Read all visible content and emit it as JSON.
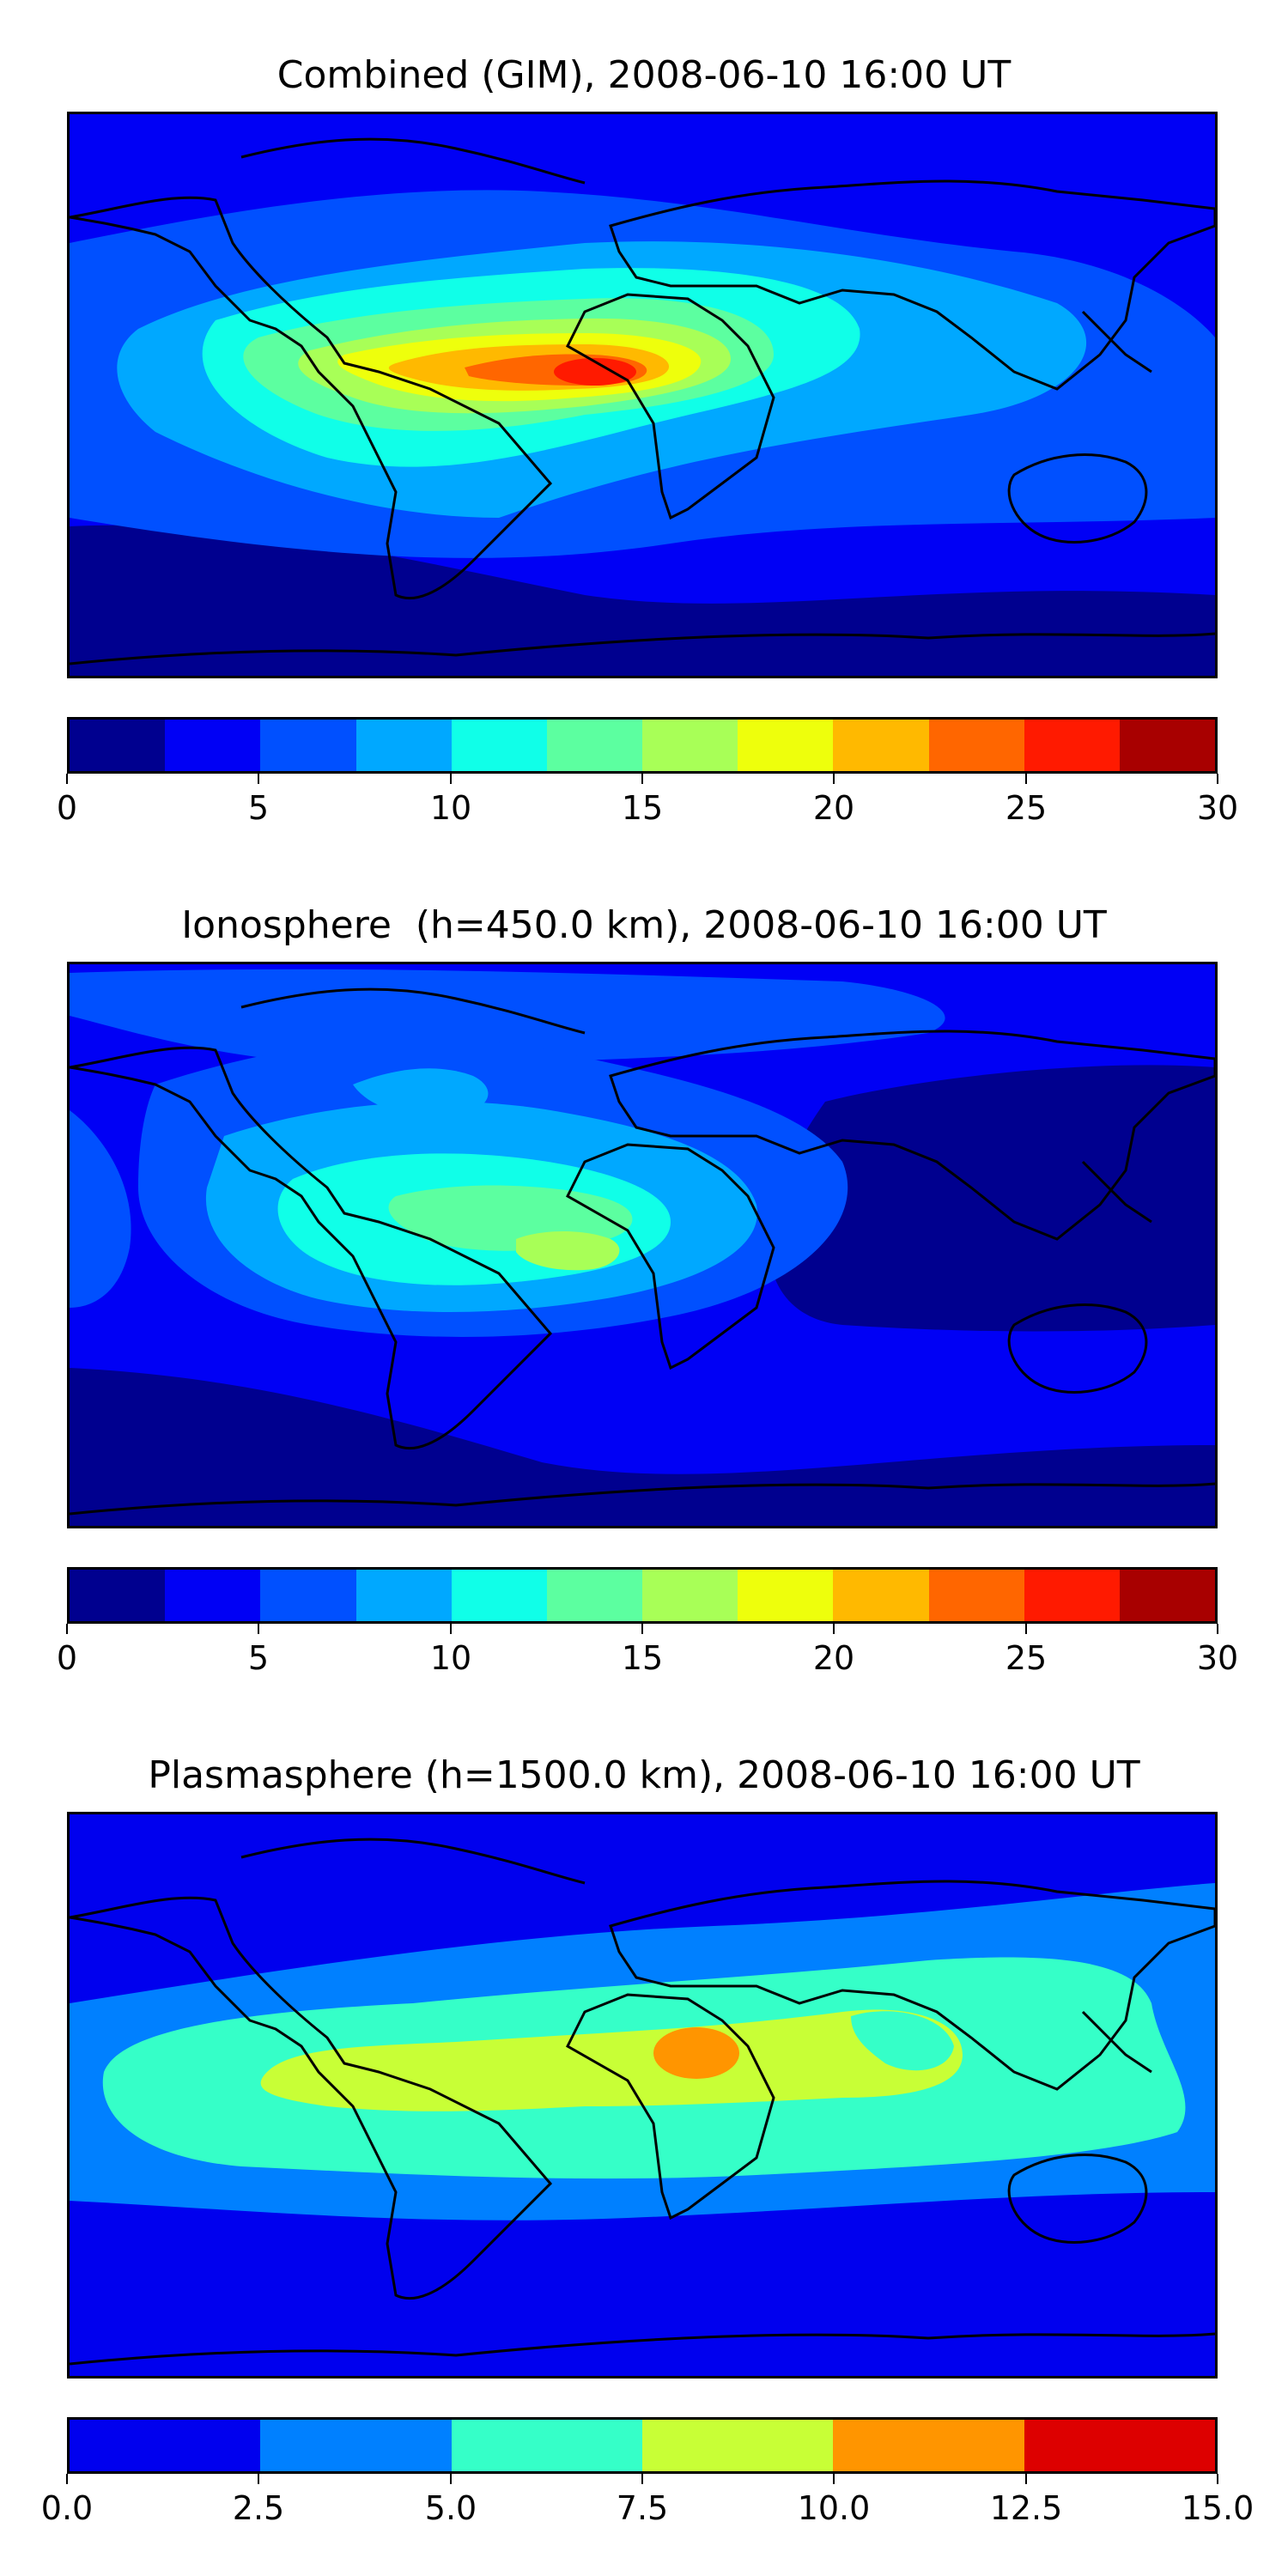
{
  "panels": [
    {
      "title": "Combined (GIM), 2008-06-10 16:00 UT",
      "colorbar": {
        "colors": [
          "#00008f",
          "#0000f5",
          "#0050ff",
          "#00a8ff",
          "#10ffe8",
          "#5cffa0",
          "#a8ff57",
          "#eeff0c",
          "#ffb900",
          "#ff6600",
          "#ff1a00",
          "#a80000"
        ],
        "tick_labels": [
          "0",
          "5",
          "10",
          "15",
          "20",
          "25",
          "30"
        ],
        "range": [
          0,
          30
        ]
      }
    },
    {
      "title": "Ionosphere  (h=450.0 km), 2008-06-10 16:00 UT",
      "colorbar": {
        "colors": [
          "#00008f",
          "#0000f5",
          "#0050ff",
          "#00a8ff",
          "#10ffe8",
          "#5cffa0",
          "#a8ff57",
          "#eeff0c",
          "#ffb900",
          "#ff6600",
          "#ff1a00",
          "#a80000"
        ],
        "tick_labels": [
          "0",
          "5",
          "10",
          "15",
          "20",
          "25",
          "30"
        ],
        "range": [
          0,
          30
        ]
      }
    },
    {
      "title": "Plasmasphere (h=1500.0 km), 2008-06-10 16:00 UT",
      "colorbar": {
        "colors": [
          "#0000ee",
          "#0080ff",
          "#35ffc8",
          "#c8ff36",
          "#ff9500",
          "#dd0000"
        ],
        "tick_labels": [
          "0.0",
          "2.5",
          "5.0",
          "7.5",
          "10.0",
          "12.5",
          "15.0"
        ],
        "range": [
          0,
          15
        ]
      }
    }
  ]
}
